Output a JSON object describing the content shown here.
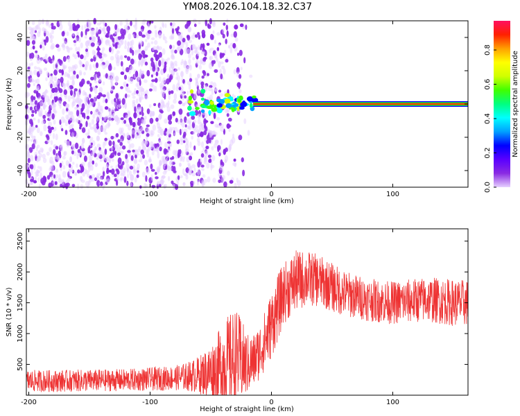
{
  "title": "YM08.2026.104.18.32.C37",
  "colors": {
    "snr_line": "#ee3333",
    "frame": "#000000",
    "colormap": [
      "#e6d0ff",
      "#8a2be2",
      "#5a00ff",
      "#0000ff",
      "#00a0ff",
      "#00ffff",
      "#00ff80",
      "#40ff00",
      "#d0ff00",
      "#ffff00",
      "#ffa000",
      "#ff2000",
      "#ff1060"
    ]
  },
  "chart_data": [
    {
      "type": "heatmap",
      "title": "",
      "xlabel": "Height of straight line (km)",
      "ylabel": "Frequency (Hz)",
      "xlim": [
        -202,
        162
      ],
      "ylim": [
        -50,
        50
      ],
      "x_ticks": [
        -200,
        -100,
        0,
        100
      ],
      "x_tick_labels": [
        "-200",
        "-100",
        "0",
        "100"
      ],
      "y_ticks": [
        -40,
        -20,
        0,
        20,
        40
      ],
      "y_tick_labels": [
        "-40",
        "-20",
        "0",
        "20",
        "40"
      ],
      "colorbar": {
        "label": "Normalized spectral amplitude",
        "range": [
          0,
          0.97
        ],
        "ticks": [
          0.0,
          0.2,
          0.4,
          0.6,
          0.8
        ],
        "tick_labels": [
          "0.0",
          "0.2",
          "0.4",
          "0.6",
          "0.8"
        ]
      },
      "description_points": {
        "noise_region_x": [
          -202,
          -60
        ],
        "noise_fade_x": [
          -60,
          -15
        ],
        "signal_band_start_x": -68,
        "signal_band_freq_hz": 0,
        "signal_band_end_x": 162,
        "signal_peak_amplitude": 0.95
      }
    },
    {
      "type": "line",
      "title": "",
      "xlabel": "Height of straight line (km)",
      "ylabel": "SNR (10 * v/v)",
      "xlim": [
        -202,
        162
      ],
      "ylim": [
        0,
        2700
      ],
      "x_ticks": [
        -200,
        -100,
        0,
        100
      ],
      "x_tick_labels": [
        "-200",
        "-100",
        "0",
        "100"
      ],
      "y_ticks": [
        500,
        1000,
        1500,
        2000,
        2500
      ],
      "y_tick_labels": [
        "500",
        "1000",
        "1500",
        "2000",
        "2500"
      ],
      "series": [
        {
          "name": "SNR",
          "x": [
            -202,
            -180,
            -160,
            -140,
            -120,
            -100,
            -80,
            -70,
            -60,
            -50,
            -45,
            -40,
            -35,
            -30,
            -25,
            -20,
            -15,
            -10,
            -5,
            0,
            5,
            10,
            20,
            30,
            40,
            50,
            60,
            70,
            80,
            90,
            100,
            110,
            120,
            130,
            140,
            150,
            162
          ],
          "mean": [
            230,
            230,
            235,
            240,
            245,
            260,
            280,
            300,
            330,
            380,
            430,
            500,
            560,
            620,
            560,
            500,
            550,
            700,
            900,
            1150,
            1400,
            1650,
            1850,
            1900,
            1850,
            1750,
            1650,
            1600,
            1550,
            1520,
            1500,
            1520,
            1540,
            1550,
            1530,
            1500,
            1500
          ],
          "spread": [
            180,
            180,
            180,
            180,
            180,
            190,
            200,
            230,
            300,
            450,
            550,
            700,
            750,
            800,
            700,
            500,
            450,
            450,
            500,
            550,
            550,
            500,
            500,
            450,
            420,
            400,
            380,
            360,
            350,
            350,
            350,
            360,
            360,
            370,
            380,
            380,
            380
          ]
        }
      ]
    }
  ]
}
